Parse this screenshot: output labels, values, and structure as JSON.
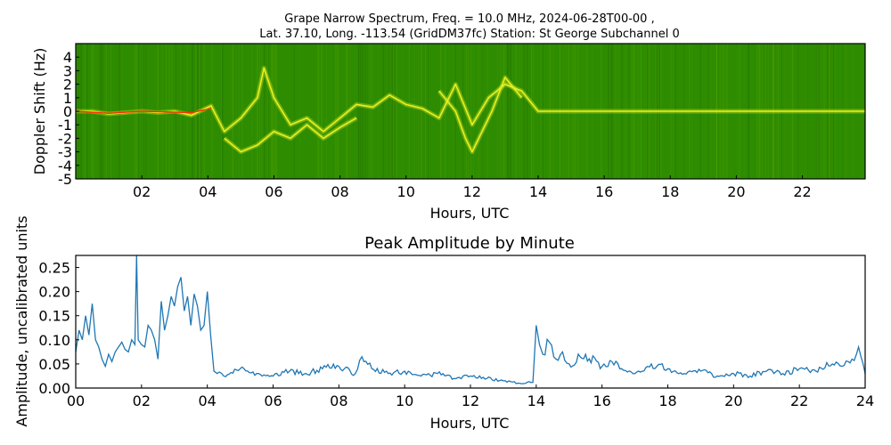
{
  "chart_data": [
    {
      "type": "heatmap",
      "title_line1": "Grape Narrow Spectrum, Freq. = 10.0 MHz, 2024-06-28T00-00 ,",
      "title_line2": "Lat.  37.10, Long. -113.54 (GridDM37fc) Station: St George Subchannel 0",
      "xlabel": "Hours, UTC",
      "ylabel": "Doppler Shift (Hz)",
      "xlim": [
        0,
        23.9
      ],
      "ylim": [
        -5,
        5
      ],
      "xticks": [
        2,
        4,
        6,
        8,
        10,
        12,
        14,
        16,
        18,
        20,
        22
      ],
      "xtick_labels": [
        "02",
        "04",
        "06",
        "08",
        "10",
        "12",
        "14",
        "16",
        "18",
        "20",
        "22"
      ],
      "yticks": [
        4,
        3,
        2,
        1,
        0,
        -1,
        -2,
        -3,
        -4,
        -5
      ],
      "ytick_labels": [
        "4",
        "3",
        "2",
        "1",
        "0",
        "-1",
        "-2",
        "-3",
        "-4",
        "-5"
      ],
      "background_color": "#2e8c00",
      "signal_color": "#e8f020",
      "peak_color": "#ff3000",
      "traces": [
        {
          "x": [
            0,
            0.5,
            1,
            1.5,
            2,
            2.5,
            3,
            3.5,
            4.1,
            4.5,
            5,
            5.5,
            5.7,
            6,
            6.5,
            7,
            7.5,
            8,
            8.5,
            9,
            9.5,
            10,
            10.5,
            11,
            11.5,
            12,
            12.5,
            13,
            13.5,
            14,
            16,
            18,
            20,
            22,
            23.9
          ],
          "y": [
            0,
            0,
            -0.2,
            -0.1,
            0,
            -0.1,
            0,
            -0.3,
            0.4,
            -1.5,
            -0.5,
            1,
            3.2,
            1,
            -1,
            -0.5,
            -1.5,
            -0.5,
            0.5,
            0.3,
            1.2,
            0.5,
            0.2,
            -0.5,
            2,
            -1,
            1,
            2,
            1.5,
            0,
            0,
            0,
            0,
            0,
            0
          ]
        },
        {
          "x": [
            4.5,
            5,
            5.5,
            6,
            6.5,
            7,
            7.5,
            8,
            8.5
          ],
          "y": [
            -2,
            -3,
            -2.5,
            -1.5,
            -2,
            -1,
            -2,
            -1.2,
            -0.5
          ]
        },
        {
          "x": [
            11,
            11.5,
            11.8,
            12,
            12.3,
            12.6,
            13,
            13.5
          ],
          "y": [
            1.5,
            0,
            -2,
            -3,
            -1.5,
            0,
            2.5,
            1
          ]
        }
      ]
    },
    {
      "type": "line",
      "title": "Peak Amplitude by Minute",
      "xlabel": "Hours, UTC",
      "ylabel": "Amplitude, uncalibrated units",
      "xlim": [
        0,
        24
      ],
      "ylim": [
        0,
        0.275
      ],
      "xticks": [
        0,
        2,
        4,
        6,
        8,
        10,
        12,
        14,
        16,
        18,
        20,
        22,
        24
      ],
      "xtick_labels": [
        "00",
        "02",
        "04",
        "06",
        "08",
        "10",
        "12",
        "14",
        "16",
        "18",
        "20",
        "22",
        "24"
      ],
      "yticks": [
        0,
        0.05,
        0.1,
        0.15,
        0.2,
        0.25
      ],
      "ytick_labels": [
        "0.00",
        "0.05",
        "0.10",
        "0.15",
        "0.20",
        "0.25"
      ],
      "line_color": "#1f77b4",
      "x": [
        0,
        0.1,
        0.2,
        0.3,
        0.4,
        0.5,
        0.6,
        0.7,
        0.8,
        0.9,
        1.0,
        1.1,
        1.2,
        1.3,
        1.4,
        1.5,
        1.6,
        1.7,
        1.8,
        1.85,
        1.9,
        2.0,
        2.1,
        2.2,
        2.3,
        2.4,
        2.5,
        2.6,
        2.7,
        2.8,
        2.9,
        3.0,
        3.1,
        3.2,
        3.3,
        3.4,
        3.5,
        3.6,
        3.7,
        3.8,
        3.9,
        4.0,
        4.1,
        4.2,
        4.3,
        4.5,
        5.0,
        5.5,
        6.0,
        6.5,
        7.0,
        7.5,
        8.0,
        8.5,
        8.7,
        9.0,
        9.5,
        10.0,
        10.5,
        11.0,
        11.5,
        12.0,
        12.5,
        13.0,
        13.5,
        13.9,
        14.0,
        14.1,
        14.2,
        14.4,
        14.6,
        14.8,
        15.0,
        15.5,
        16.0,
        16.3,
        16.6,
        17.0,
        17.5,
        18.0,
        18.5,
        19.0,
        19.5,
        20.0,
        20.5,
        21.0,
        21.5,
        22.0,
        22.5,
        23.0,
        23.3,
        23.6,
        23.8,
        24.0
      ],
      "y": [
        0.075,
        0.12,
        0.1,
        0.15,
        0.11,
        0.175,
        0.1,
        0.085,
        0.06,
        0.045,
        0.07,
        0.055,
        0.075,
        0.085,
        0.095,
        0.08,
        0.075,
        0.1,
        0.09,
        0.275,
        0.1,
        0.09,
        0.085,
        0.13,
        0.12,
        0.1,
        0.06,
        0.18,
        0.12,
        0.15,
        0.19,
        0.17,
        0.21,
        0.23,
        0.16,
        0.19,
        0.13,
        0.195,
        0.17,
        0.12,
        0.13,
        0.2,
        0.11,
        0.035,
        0.03,
        0.025,
        0.04,
        0.03,
        0.025,
        0.035,
        0.03,
        0.04,
        0.045,
        0.03,
        0.065,
        0.04,
        0.03,
        0.035,
        0.025,
        0.03,
        0.02,
        0.025,
        0.02,
        0.015,
        0.01,
        0.012,
        0.13,
        0.09,
        0.07,
        0.095,
        0.06,
        0.075,
        0.05,
        0.07,
        0.045,
        0.055,
        0.04,
        0.03,
        0.05,
        0.04,
        0.03,
        0.035,
        0.025,
        0.03,
        0.025,
        0.035,
        0.03,
        0.04,
        0.035,
        0.05,
        0.045,
        0.06,
        0.085,
        0.03
      ]
    }
  ]
}
